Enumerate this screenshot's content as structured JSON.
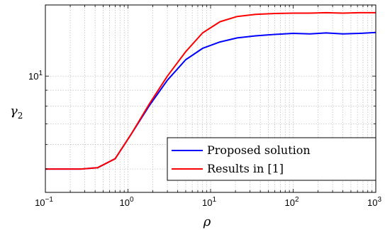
{
  "chart_data": {
    "type": "line",
    "xscale": "log",
    "yscale": "log",
    "xlim": [
      0.1,
      1000
    ],
    "ylim": [
      4.2,
      17
    ],
    "xlabel": "ρ",
    "ylabel_main": "γ",
    "ylabel_sub": "2",
    "x_ticks": [
      {
        "base": "10",
        "exp": "−1",
        "value": 0.1
      },
      {
        "base": "10",
        "exp": "0",
        "value": 1
      },
      {
        "base": "10",
        "exp": "1",
        "value": 10
      },
      {
        "base": "10",
        "exp": "2",
        "value": 100
      },
      {
        "base": "10",
        "exp": "3",
        "value": 1000
      }
    ],
    "y_ticks": [
      {
        "base": "10",
        "exp": "1",
        "value": 10
      }
    ],
    "grid": true,
    "legend_position": "lower-right",
    "series": [
      {
        "name": "Proposed solution",
        "color": "#0000ff",
        "x": [
          0.1,
          0.27,
          0.43,
          0.7,
          1.1,
          1.8,
          3.0,
          5.0,
          8.0,
          13,
          21,
          35,
          60,
          100,
          160,
          250,
          400,
          630,
          1000
        ],
        "y": [
          5.0,
          5.0,
          5.05,
          5.4,
          6.5,
          8.0,
          9.7,
          11.3,
          12.3,
          12.9,
          13.3,
          13.5,
          13.65,
          13.75,
          13.7,
          13.8,
          13.7,
          13.75,
          13.85
        ]
      },
      {
        "name": "Results in [1]",
        "color": "#ff0000",
        "x": [
          0.1,
          0.27,
          0.43,
          0.7,
          1.1,
          1.8,
          3.0,
          5.0,
          8.0,
          13,
          21,
          35,
          60,
          100,
          160,
          250,
          400,
          630,
          1000
        ],
        "y": [
          5.0,
          5.0,
          5.05,
          5.4,
          6.5,
          8.1,
          10.0,
          12.0,
          13.8,
          15.0,
          15.6,
          15.85,
          15.95,
          16.0,
          16.0,
          16.05,
          16.0,
          16.05,
          16.05
        ]
      }
    ]
  }
}
